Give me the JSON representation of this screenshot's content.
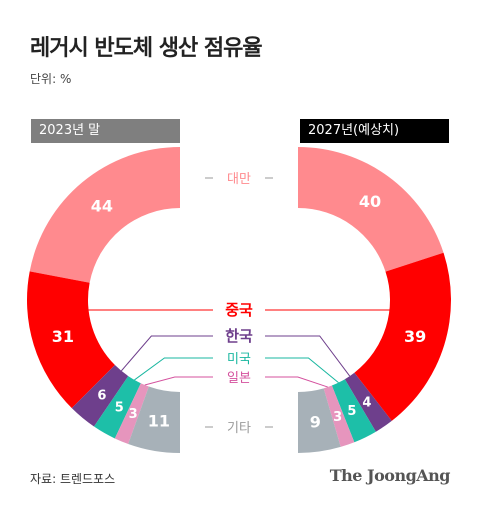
{
  "header": {
    "title": "레거시 반도체 생산 점유율",
    "unit": "단위: %"
  },
  "footer": {
    "source": "자료: 트렌드포스",
    "logo": "The JoongAng"
  },
  "chart_data": {
    "type": "donut",
    "title": "레거시 반도체 생산 점유율",
    "unit": "%",
    "categories": [
      "대만",
      "중국",
      "한국",
      "미국",
      "일본",
      "기타"
    ],
    "colors": {
      "대만": "#ff8a8e",
      "중국": "#ff0000",
      "한국": "#6e3f8c",
      "미국": "#1dbfa8",
      "일본": "#e695bd",
      "기타": "#a7b1b8"
    },
    "label_colors": {
      "대만": "#ff8a8e",
      "중국": "#ff0000",
      "한국": "#6e3f8c",
      "미국": "#19b7a0",
      "일본": "#d4519e",
      "기타": "#9a9a9a"
    },
    "series": [
      {
        "name": "2023년 말",
        "values": [
          44,
          31,
          6,
          5,
          3,
          11
        ]
      },
      {
        "name": "2027년(예상치)",
        "values": [
          40,
          39,
          4,
          5,
          3,
          9
        ]
      }
    ]
  }
}
